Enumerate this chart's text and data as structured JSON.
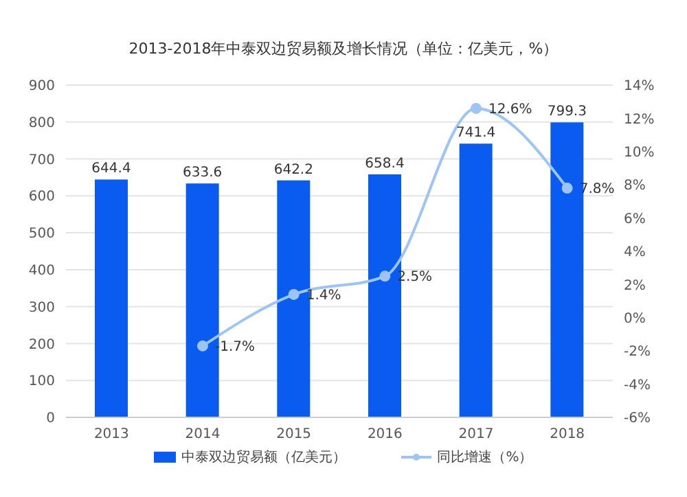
{
  "chart_data": {
    "type": "bar",
    "title": "2013-2018年中泰双边贸易额及增长情况（单位：亿美元，%）",
    "categories": [
      "2013",
      "2014",
      "2015",
      "2016",
      "2017",
      "2018"
    ],
    "series": [
      {
        "name": "中泰双边贸易额（亿美元）",
        "color": "#0a5cf0",
        "values": [
          644.4,
          633.6,
          642.2,
          658.4,
          741.4,
          799.3
        ],
        "value_labels": [
          "644.4",
          "633.6",
          "642.2",
          "658.4",
          "741.4",
          "799.3"
        ]
      },
      {
        "name": "同比增速（%）",
        "type": "line",
        "axis": "y2",
        "color": "#9cc5f5",
        "marker": "circle",
        "values": [
          null,
          -1.7,
          1.4,
          2.5,
          12.6,
          7.8
        ],
        "value_labels": [
          null,
          "-1.7%",
          "1.4%",
          "2.5%",
          "12.6%",
          "7.8%"
        ]
      }
    ],
    "ylim": [
      0,
      900
    ],
    "yticks": [
      0,
      100,
      200,
      300,
      400,
      500,
      600,
      700,
      800,
      900
    ],
    "y2lim": [
      -6,
      14
    ],
    "y2ticks": [
      {
        "value": -6,
        "label": "-6%"
      },
      {
        "value": -4,
        "label": "-4%"
      },
      {
        "value": -2,
        "label": "-2%"
      },
      {
        "value": 0,
        "label": "0%"
      },
      {
        "value": 2,
        "label": "2%"
      },
      {
        "value": 4,
        "label": "4%"
      },
      {
        "value": 6,
        "label": "6%"
      },
      {
        "value": 8,
        "label": "8%"
      },
      {
        "value": 10,
        "label": "10%"
      },
      {
        "value": 12,
        "label": "12%"
      },
      {
        "value": 14,
        "label": "14%"
      }
    ],
    "grid": "y",
    "legend": "bottom"
  }
}
